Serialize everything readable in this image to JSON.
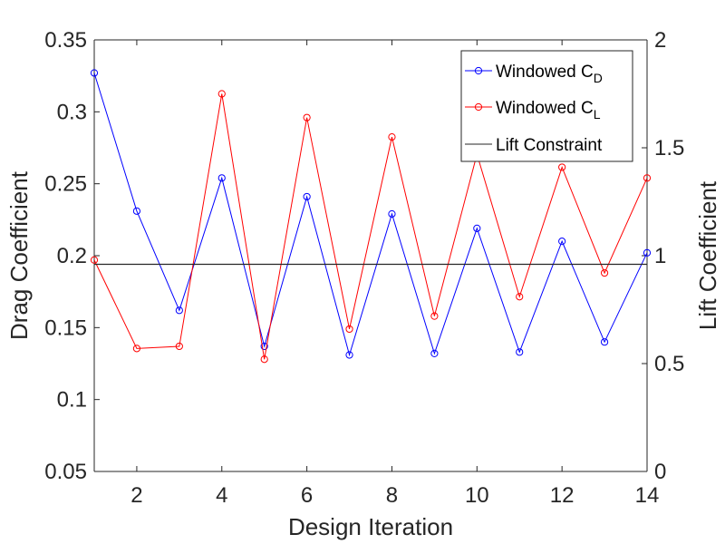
{
  "chart_data": {
    "type": "line",
    "xlabel": "Design Iteration",
    "ylabel_left": "Drag Coefficient",
    "ylabel_right": "Lift Coefficient",
    "xlim": [
      1,
      14
    ],
    "ylim_left": [
      0.05,
      0.35
    ],
    "ylim_right": [
      0,
      2
    ],
    "xticks": [
      2,
      4,
      6,
      8,
      10,
      12,
      14
    ],
    "xtick_labels": [
      "2",
      "4",
      "6",
      "8",
      "10",
      "12",
      "14"
    ],
    "yticks_left": [
      0.05,
      0.1,
      0.15,
      0.2,
      0.25,
      0.3,
      0.35
    ],
    "ytick_labels_left": [
      "0.05",
      "0.1",
      "0.15",
      "0.2",
      "0.25",
      "0.3",
      "0.35"
    ],
    "yticks_right": [
      0,
      0.5,
      1,
      1.5,
      2
    ],
    "ytick_labels_right": [
      "0",
      "0.5",
      "1",
      "1.5",
      "2"
    ],
    "x": [
      1,
      2,
      3,
      4,
      5,
      6,
      7,
      8,
      9,
      10,
      11,
      12,
      13,
      14
    ],
    "series": [
      {
        "name": "Windowed C",
        "subscript": "D",
        "axis": "left",
        "color": "#0000ff",
        "marker": "circle",
        "values": [
          0.327,
          0.231,
          0.162,
          0.254,
          0.137,
          0.241,
          0.131,
          0.229,
          0.132,
          0.219,
          0.133,
          0.21,
          0.14,
          0.202
        ]
      },
      {
        "name": "Windowed C",
        "subscript": "L",
        "axis": "right",
        "color": "#ff0000",
        "marker": "circle",
        "values": [
          0.98,
          0.57,
          0.58,
          1.75,
          0.52,
          1.64,
          0.66,
          1.55,
          0.72,
          1.47,
          0.81,
          1.41,
          0.92,
          1.36
        ]
      },
      {
        "name": "Lift Constraint",
        "axis": "right",
        "color": "#262626",
        "marker": "none",
        "constant": 0.96
      }
    ],
    "legend_position": "top-right",
    "grid": false
  }
}
